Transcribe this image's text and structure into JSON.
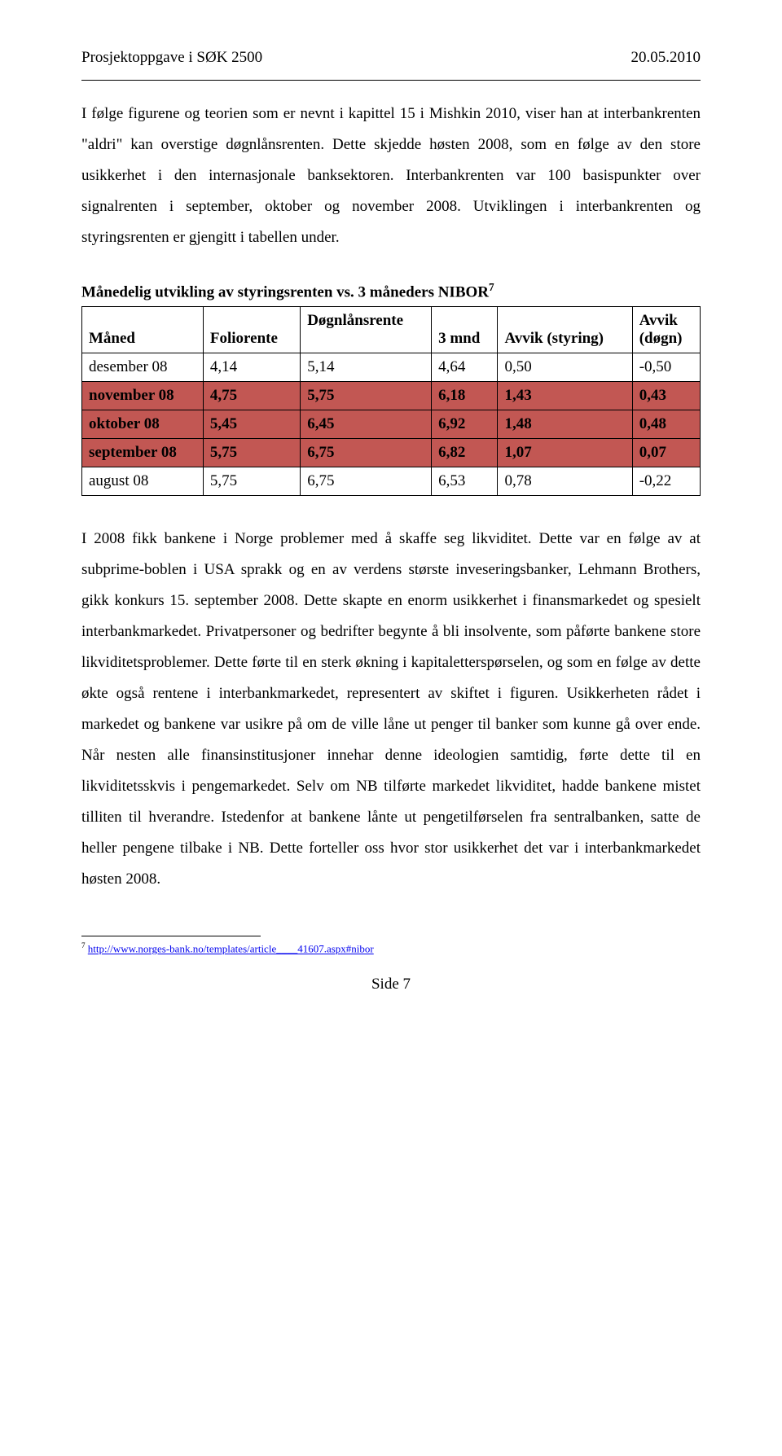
{
  "header": {
    "left": "Prosjektoppgave i SØK 2500",
    "right": "20.05.2010"
  },
  "para1": "I følge figurene og teorien som er nevnt i kapittel 15 i Mishkin 2010, viser han at interbankrenten \"aldri\" kan overstige døgnlånsrenten. Dette skjedde høsten 2008, som en følge av den store usikkerhet i den internasjonale banksektoren. Interbankrenten var 100 basispunkter over signalrenten i september, oktober og november 2008. Utviklingen i interbankrenten og styringsrenten er gjengitt i tabellen under.",
  "table": {
    "title_prefix": "Månedelig utvikling av styringsrenten vs. 3 måneders NIBOR",
    "sup": "7",
    "highlight_color": "#c25753",
    "columns": {
      "c0": "Måned",
      "c1": "Foliorente",
      "c2": "Døgnlånsrente",
      "c3": "3 mnd",
      "c4": "Avvik (styring)",
      "c5_l1": "Avvik",
      "c5_l2": "(døgn)"
    },
    "rows": [
      {
        "hl": false,
        "c0": "desember 08",
        "c1": "4,14",
        "c2": "5,14",
        "c3": "4,64",
        "c4": "0,50",
        "c5": "-0,50"
      },
      {
        "hl": true,
        "c0": "november 08",
        "c1": "4,75",
        "c2": "5,75",
        "c3": "6,18",
        "c4": "1,43",
        "c5": "0,43"
      },
      {
        "hl": true,
        "c0": "oktober 08",
        "c1": "5,45",
        "c2": "6,45",
        "c3": "6,92",
        "c4": "1,48",
        "c5": "0,48"
      },
      {
        "hl": true,
        "c0": "september 08",
        "c1": "5,75",
        "c2": "6,75",
        "c3": "6,82",
        "c4": "1,07",
        "c5": "0,07"
      },
      {
        "hl": false,
        "c0": "august 08",
        "c1": "5,75",
        "c2": "6,75",
        "c3": "6,53",
        "c4": "0,78",
        "c5": "-0,22"
      }
    ]
  },
  "para2": "I 2008 fikk bankene i Norge problemer med å skaffe seg likviditet. Dette var en følge av at subprime-boblen i USA sprakk og en av verdens største inveseringsbanker, Lehmann Brothers, gikk konkurs 15. september 2008. Dette skapte en enorm usikkerhet i finansmarkedet og spesielt interbankmarkedet. Privatpersoner og bedrifter begynte å bli insolvente, som påførte bankene store likviditetsproblemer. Dette førte til en sterk økning i kapitaletterspørselen, og som en følge av dette økte også rentene i interbankmarkedet, representert av skiftet i figuren. Usikkerheten rådet i markedet og bankene var usikre på om de ville låne ut penger til banker som kunne gå over ende. Når nesten alle finansinstitusjoner innehar denne ideologien samtidig, førte dette til en likviditetsskvis i pengemarkedet. Selv om NB tilførte markedet likviditet, hadde bankene mistet tilliten til hverandre. Istedenfor at bankene lånte ut pengetilførselen fra sentralbanken, satte de heller pengene tilbake i NB. Dette forteller oss hvor stor usikkerhet det var i interbankmarkedet høsten 2008.",
  "footnote": {
    "num": "7",
    "link_text": "http://www.norges-bank.no/templates/article____41607.aspx#nibor"
  },
  "footer": "Side 7"
}
